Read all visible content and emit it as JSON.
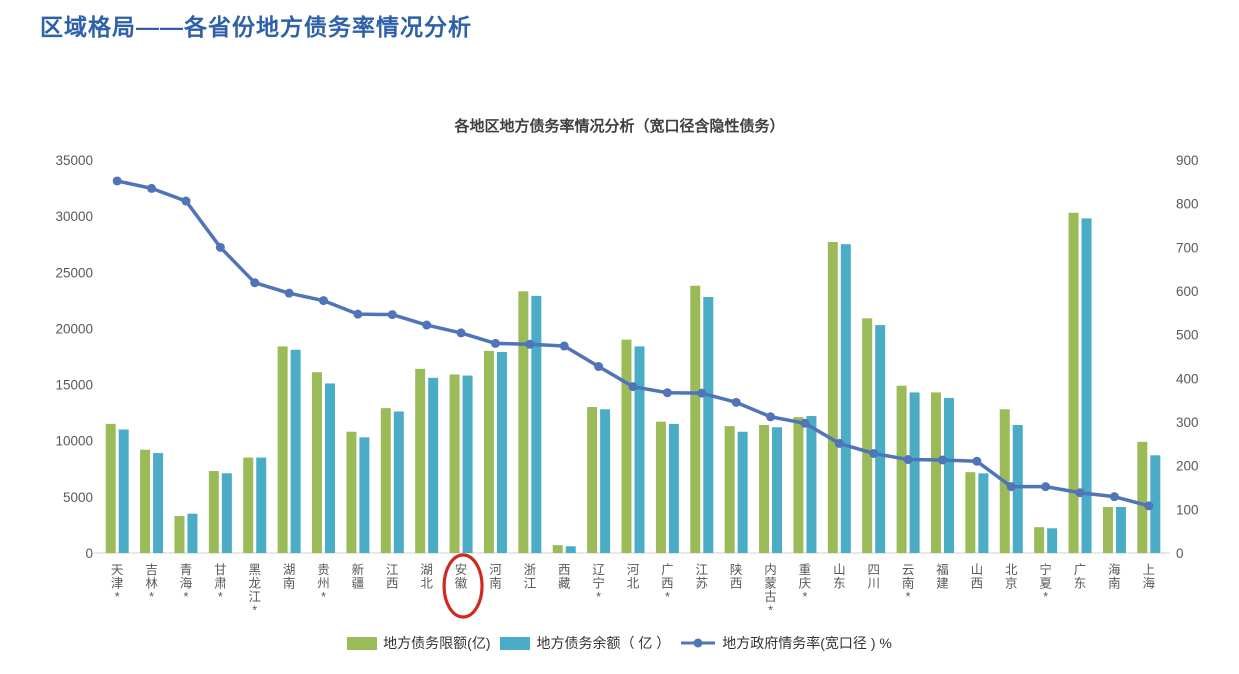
{
  "page_title": "区域格局——各省份地方债务率情况分析",
  "colors": {
    "title_blue": "#2e61a8",
    "bar_limit_green": "#9bbb59",
    "bar_balance_blue": "#4bacc6",
    "ratio_line_blue": "#4f74b8",
    "axis_text_gray": "#595959",
    "highlight_red": "#d2281e"
  },
  "chart_data": {
    "type": "bar",
    "subtype": "grouped-bars-with-line-dual-axis",
    "title": "各地区地方债务率情况分析（宽口径含隐性债务）",
    "grid": false,
    "legend_position": "bottom",
    "categories": [
      "天津*",
      "吉林*",
      "青海*",
      "甘肃*",
      "黑龙江*",
      "湖南",
      "贵州*",
      "新疆",
      "江西",
      "湖北",
      "安徽",
      "河南",
      "浙江",
      "西藏",
      "辽宁*",
      "河北",
      "广西*",
      "江苏",
      "陕西",
      "内蒙古*",
      "重庆*",
      "山东",
      "四川",
      "云南*",
      "福建",
      "山西",
      "北京",
      "宁夏*",
      "广东",
      "海南",
      "上海"
    ],
    "highlighted_category": "安徽",
    "series": [
      {
        "name": "地方债务限额(亿)",
        "type": "bar",
        "axis": "left",
        "color": "#9bbb59",
        "values": [
          11500,
          9200,
          3300,
          7300,
          8500,
          18400,
          16100,
          10800,
          12900,
          16400,
          15900,
          18000,
          23300,
          700,
          13000,
          19000,
          11700,
          23800,
          11300,
          11400,
          12100,
          27700,
          20900,
          14900,
          14300,
          7200,
          12800,
          2300,
          30300,
          4100,
          9900
        ]
      },
      {
        "name": "地方债务余额（ 亿 ）",
        "type": "bar",
        "axis": "left",
        "color": "#4bacc6",
        "values": [
          11000,
          8900,
          3500,
          7100,
          8500,
          18100,
          15100,
          10300,
          12600,
          15600,
          15800,
          17900,
          22900,
          600,
          12800,
          18400,
          11500,
          22800,
          10800,
          11200,
          12200,
          27500,
          20300,
          14300,
          13800,
          7100,
          11400,
          2200,
          29800,
          4100,
          8700
        ]
      },
      {
        "name": "地方政府情务率(宽口径 ) %",
        "type": "line",
        "axis": "right",
        "color": "#4f74b8",
        "values": [
          852,
          835,
          806,
          700,
          619,
          595,
          578,
          547,
          546,
          522,
          504,
          480,
          478,
          474,
          427,
          381,
          367,
          366,
          345,
          312,
          297,
          251,
          228,
          214,
          213,
          210,
          152,
          152,
          138,
          129,
          108
        ]
      }
    ],
    "left_axis": {
      "min": 0,
      "max": 35000,
      "step": 5000,
      "ticks": [
        "0",
        "5000",
        "10000",
        "15000",
        "20000",
        "25000",
        "30000",
        "35000"
      ]
    },
    "right_axis": {
      "min": 0,
      "max": 900,
      "step": 100,
      "ticks": [
        "0",
        "100",
        "200",
        "300",
        "400",
        "500",
        "600",
        "700",
        "800",
        "900"
      ]
    }
  }
}
